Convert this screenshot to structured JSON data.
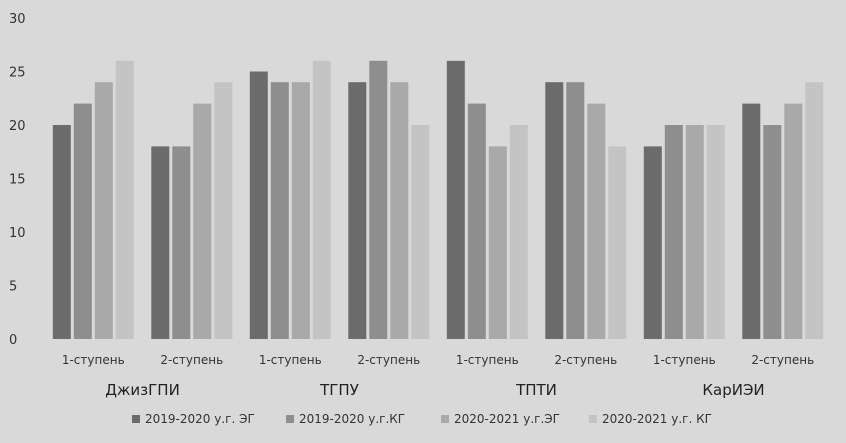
{
  "chart_data": {
    "type": "bar",
    "ylim": [
      0,
      30
    ],
    "yticks": [
      0,
      5,
      10,
      15,
      20,
      25,
      30
    ],
    "grid": false,
    "legend_position": "bottom",
    "categories": [
      {
        "label": "1-ступень",
        "group": "ДжизГПИ"
      },
      {
        "label": "2-ступень",
        "group": "ДжизГПИ"
      },
      {
        "label": "1-ступень",
        "group": "ТГПУ"
      },
      {
        "label": "2-ступень",
        "group": "ТГПУ"
      },
      {
        "label": "1-ступень",
        "group": "ТПТИ"
      },
      {
        "label": "2-ступень",
        "group": "ТПТИ"
      },
      {
        "label": "1-ступень",
        "group": "КарИЭИ"
      },
      {
        "label": "2-ступень",
        "group": "КарИЭИ"
      }
    ],
    "groups": [
      "ДжизГПИ",
      "ТГПУ",
      "ТПТИ",
      "КарИЭИ"
    ],
    "series": [
      {
        "name": "2019-2020 у.г. ЭГ",
        "color": "#6b6b6b",
        "values": [
          20,
          18,
          25,
          24,
          26,
          24,
          18,
          22
        ]
      },
      {
        "name": "2019-2020 у.г.КГ",
        "color": "#8e8e8e",
        "values": [
          22,
          18,
          24,
          26,
          22,
          24,
          20,
          20
        ]
      },
      {
        "name": "2020-2021 у.г.ЭГ",
        "color": "#a9a9a9",
        "values": [
          24,
          22,
          24,
          24,
          18,
          22,
          20,
          22
        ]
      },
      {
        "name": "2020-2021 у.г. КГ",
        "color": "#c4c4c4",
        "values": [
          26,
          24,
          26,
          20,
          20,
          18,
          20,
          24
        ]
      }
    ]
  }
}
